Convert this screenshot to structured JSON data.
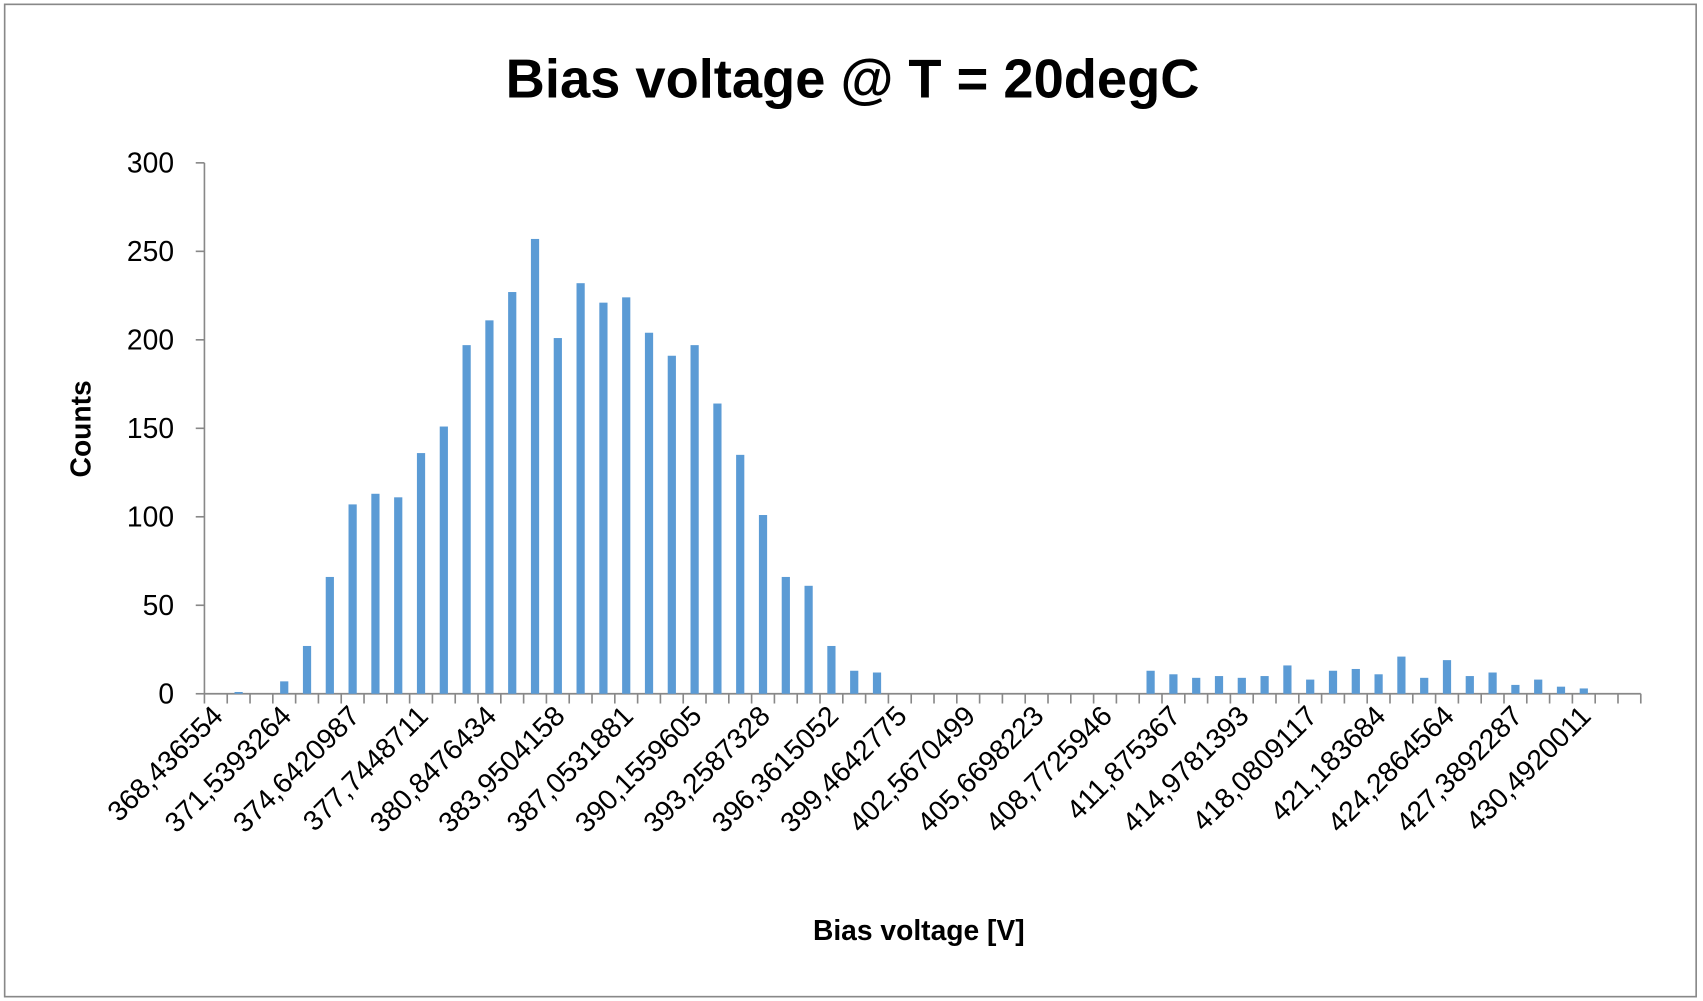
{
  "chart_data": {
    "type": "bar",
    "title": "Bias voltage @ T = 20degC",
    "x_label": "Bias voltage [V]",
    "y_label": "Counts",
    "color": "#5b9bd5",
    "categories": [
      "368,436554",
      null,
      null,
      "371,5393264",
      null,
      null,
      "374,6420987",
      null,
      null,
      "377,7448711",
      null,
      null,
      "380,8476434",
      null,
      null,
      "383,9504158",
      null,
      null,
      "387,0531881",
      null,
      null,
      "390,1559605",
      null,
      null,
      "393,2587328",
      null,
      null,
      "396,3615052",
      null,
      null,
      "399,4642775",
      null,
      null,
      "402,5670499",
      null,
      null,
      "405,6698223",
      null,
      null,
      "408,7725946",
      null,
      null,
      "411,875367",
      null,
      null,
      "414,9781393",
      null,
      null,
      "418,0809117",
      null,
      null,
      "421,183684",
      null,
      null,
      "424,2864564",
      null,
      null,
      "427,3892287",
      null,
      null,
      "430,4920011",
      null,
      null
    ],
    "values": [
      0,
      1,
      0,
      7,
      27,
      66,
      107,
      113,
      111,
      136,
      151,
      197,
      211,
      227,
      257,
      201,
      232,
      221,
      224,
      204,
      191,
      197,
      164,
      135,
      101,
      66,
      61,
      27,
      13,
      12,
      0,
      0,
      0,
      0,
      0,
      0,
      0,
      0,
      0,
      0,
      0,
      13,
      11,
      9,
      10,
      9,
      10,
      16,
      8,
      13,
      14,
      11,
      21,
      9,
      19,
      10,
      12,
      5,
      8,
      4,
      3,
      0,
      0
    ],
    "ylim": [
      0,
      300
    ],
    "yticks": [
      0,
      50,
      100,
      150,
      200,
      250,
      300
    ],
    "grid": false
  }
}
